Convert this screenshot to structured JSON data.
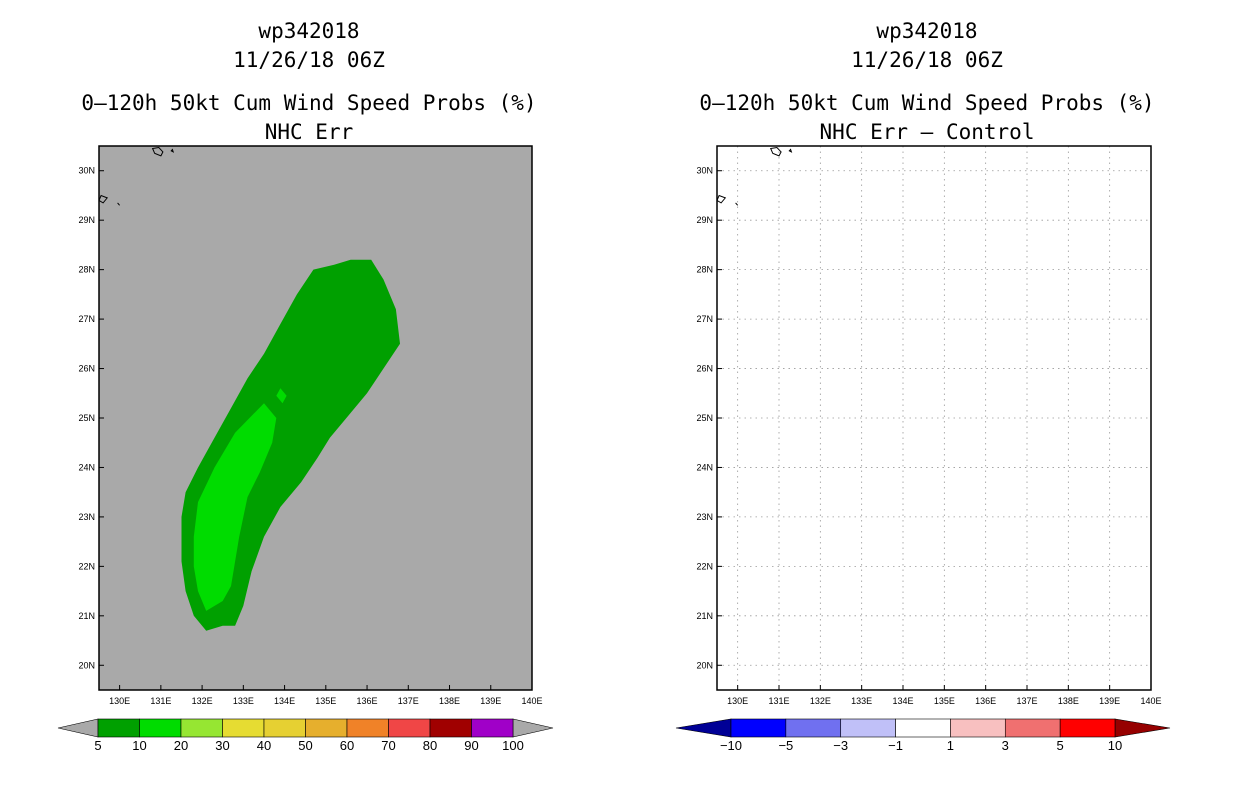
{
  "chart_data": [
    {
      "type": "filled-contour-map",
      "title_lines": [
        "wp342018",
        "11/26/18 06Z",
        "0–120h 50kt Cum Wind Speed Probs (%)",
        "NHC Err"
      ],
      "xlabel": "",
      "ylabel": "",
      "xlim": [
        129.5,
        140
      ],
      "ylim": [
        19.5,
        30.5
      ],
      "x_ticks": [
        130,
        131,
        132,
        133,
        134,
        135,
        136,
        137,
        138,
        139,
        140
      ],
      "x_tick_labels": [
        "130E",
        "131E",
        "132E",
        "133E",
        "134E",
        "135E",
        "136E",
        "137E",
        "138E",
        "139E",
        "140E"
      ],
      "y_ticks": [
        20,
        21,
        22,
        23,
        24,
        25,
        26,
        27,
        28,
        29,
        30
      ],
      "y_tick_labels": [
        "20N",
        "21N",
        "22N",
        "23N",
        "24N",
        "25N",
        "26N",
        "27N",
        "28N",
        "29N",
        "30N"
      ],
      "grid": false,
      "background_color": "#a9a9a9",
      "contours": [
        {
          "level_min": 5,
          "color": "#00a000",
          "points": [
            [
              131.6,
              21.5
            ],
            [
              131.5,
              22.1
            ],
            [
              131.5,
              22.5
            ],
            [
              131.5,
              23.0
            ],
            [
              131.6,
              23.5
            ],
            [
              131.9,
              24.0
            ],
            [
              132.3,
              24.6
            ],
            [
              132.7,
              25.2
            ],
            [
              133.1,
              25.8
            ],
            [
              133.5,
              26.3
            ],
            [
              133.9,
              26.9
            ],
            [
              134.3,
              27.5
            ],
            [
              134.7,
              28.0
            ],
            [
              135.2,
              28.1
            ],
            [
              135.6,
              28.2
            ],
            [
              136.1,
              28.2
            ],
            [
              136.4,
              27.8
            ],
            [
              136.7,
              27.2
            ],
            [
              136.8,
              26.5
            ],
            [
              136.4,
              26.0
            ],
            [
              136.0,
              25.5
            ],
            [
              135.5,
              25.0
            ],
            [
              135.1,
              24.6
            ],
            [
              134.8,
              24.2
            ],
            [
              134.4,
              23.7
            ],
            [
              133.9,
              23.2
            ],
            [
              133.5,
              22.6
            ],
            [
              133.2,
              21.9
            ],
            [
              133.0,
              21.2
            ],
            [
              132.8,
              20.8
            ],
            [
              132.5,
              20.8
            ],
            [
              132.1,
              20.7
            ],
            [
              131.8,
              21.0
            ]
          ]
        },
        {
          "level_min": 10,
          "color": "#00dc00",
          "points": [
            [
              131.9,
              21.5
            ],
            [
              131.8,
              22.0
            ],
            [
              131.8,
              22.6
            ],
            [
              131.9,
              23.3
            ],
            [
              132.3,
              24.0
            ],
            [
              132.8,
              24.7
            ],
            [
              133.5,
              25.3
            ],
            [
              133.8,
              25.0
            ],
            [
              133.7,
              24.5
            ],
            [
              133.4,
              23.9
            ],
            [
              133.1,
              23.4
            ],
            [
              132.9,
              22.6
            ],
            [
              132.7,
              21.6
            ],
            [
              132.5,
              21.3
            ],
            [
              132.1,
              21.1
            ]
          ]
        },
        {
          "level_min": 10,
          "color": "#00dc00",
          "points": [
            [
              133.9,
              25.6
            ],
            [
              133.8,
              25.45
            ],
            [
              133.95,
              25.3
            ],
            [
              134.05,
              25.45
            ]
          ]
        }
      ],
      "coastlines": [
        {
          "name": "island-north",
          "points": [
            [
              130.8,
              30.45
            ],
            [
              130.85,
              30.35
            ],
            [
              131.0,
              30.3
            ],
            [
              131.05,
              30.38
            ],
            [
              130.95,
              30.47
            ]
          ]
        },
        {
          "name": "islet-north-east",
          "points": [
            [
              131.25,
              30.4
            ],
            [
              131.28,
              30.43
            ],
            [
              131.3,
              30.38
            ]
          ]
        },
        {
          "name": "islet-west",
          "points": [
            [
              129.5,
              29.4
            ],
            [
              129.55,
              29.5
            ],
            [
              129.7,
              29.45
            ],
            [
              129.6,
              29.35
            ]
          ]
        },
        {
          "name": "islet-west-small",
          "points": [
            [
              129.95,
              29.35
            ],
            [
              130.0,
              29.3
            ]
          ]
        }
      ],
      "colorbar": {
        "colors": [
          "#00a000",
          "#00dc00",
          "#96e632",
          "#e6dc32",
          "#e6d032",
          "#e6af2d",
          "#f08228",
          "#f04646",
          "#a00000",
          "#a000c8"
        ],
        "end_color": "#a9a9a9",
        "labels": [
          "5",
          "10",
          "20",
          "30",
          "40",
          "50",
          "60",
          "70",
          "80",
          "90",
          "100"
        ]
      }
    },
    {
      "type": "filled-contour-map",
      "title_lines": [
        "wp342018",
        "11/26/18 06Z",
        "0–120h 50kt Cum Wind Speed Probs (%)",
        "NHC Err – Control"
      ],
      "xlabel": "",
      "ylabel": "",
      "xlim": [
        129.5,
        140
      ],
      "ylim": [
        19.5,
        30.5
      ],
      "x_ticks": [
        130,
        131,
        132,
        133,
        134,
        135,
        136,
        137,
        138,
        139,
        140
      ],
      "x_tick_labels": [
        "130E",
        "131E",
        "132E",
        "133E",
        "134E",
        "135E",
        "136E",
        "137E",
        "138E",
        "139E",
        "140E"
      ],
      "y_ticks": [
        20,
        21,
        22,
        23,
        24,
        25,
        26,
        27,
        28,
        29,
        30
      ],
      "y_tick_labels": [
        "20N",
        "21N",
        "22N",
        "23N",
        "24N",
        "25N",
        "26N",
        "27N",
        "28N",
        "29N",
        "30N"
      ],
      "grid": true,
      "background_color": "#ffffff",
      "contours": [],
      "coastlines": [
        {
          "name": "island-north",
          "points": [
            [
              130.8,
              30.45
            ],
            [
              130.85,
              30.35
            ],
            [
              131.0,
              30.3
            ],
            [
              131.05,
              30.38
            ],
            [
              130.95,
              30.47
            ]
          ]
        },
        {
          "name": "islet-north-east",
          "points": [
            [
              131.25,
              30.4
            ],
            [
              131.28,
              30.43
            ],
            [
              131.3,
              30.38
            ]
          ]
        },
        {
          "name": "islet-west",
          "points": [
            [
              129.5,
              29.4
            ],
            [
              129.55,
              29.5
            ],
            [
              129.7,
              29.45
            ],
            [
              129.6,
              29.35
            ]
          ]
        },
        {
          "name": "islet-west-small",
          "points": [
            [
              129.95,
              29.35
            ],
            [
              130.0,
              29.3
            ]
          ]
        }
      ],
      "colorbar": {
        "colors": [
          "#0000ff",
          "#7070f0",
          "#c0c0f8",
          "#ffffff",
          "#f8c0c0",
          "#f07070",
          "#ff0000"
        ],
        "low_end_color": "#000096",
        "high_end_color": "#960000",
        "labels": [
          "−10",
          "−5",
          "−3",
          "−1",
          "1",
          "3",
          "5",
          "10"
        ]
      }
    }
  ]
}
